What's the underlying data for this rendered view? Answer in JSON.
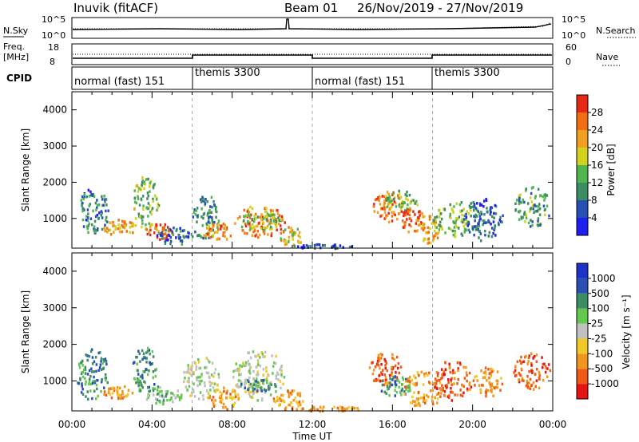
{
  "header": {
    "station": "Inuvik (fitACF)",
    "beam": "Beam 01",
    "date_range": "26/Nov/2019 - 27/Nov/2019"
  },
  "panels": {
    "nsky_label": "N.Sky",
    "nsearch_label": "N.Search",
    "freq_label": "Freq.",
    "freq_unit": "[MHz]",
    "nave_label": "Nave",
    "cpid_label": "CPID",
    "noise_ticks": [
      "10^5",
      "10^0"
    ],
    "freq_ticks": [
      "18",
      "8"
    ],
    "nave_ticks": [
      "60",
      "0"
    ],
    "cpid_segments": [
      {
        "label": "normal (fast) 151",
        "start": 0,
        "end": 6
      },
      {
        "label": "themis 3300",
        "start": 6,
        "end": 12
      },
      {
        "label": "normal (fast) 151",
        "start": 12,
        "end": 18
      },
      {
        "label": "themis 3300",
        "start": 18,
        "end": 24
      }
    ]
  },
  "colors": {
    "power": [
      "#1e1ef0",
      "#2850b4",
      "#3c8c64",
      "#50b450",
      "#d2d21e",
      "#f0a01e",
      "#f06e14",
      "#e62814"
    ],
    "velocity": [
      "#e61414",
      "#f05a14",
      "#f0961e",
      "#f0c828",
      "#c0c0c0",
      "#64c850",
      "#3c8c64",
      "#2850b4",
      "#1e32c8"
    ],
    "divider": "#aaaaaa"
  },
  "chart_data": [
    {
      "type": "heatmap",
      "name": "power",
      "ylabel": "Slant Range [km]",
      "yticks": [
        1000,
        2000,
        3000,
        4000
      ],
      "ylim": [
        180,
        4500
      ],
      "xlim": [
        0,
        24
      ],
      "colorbar_label": "Power [dB]",
      "colorbar_ticks": [
        4,
        8,
        12,
        16,
        20,
        24,
        28
      ],
      "colorbar_range": [
        0,
        32
      ],
      "blobs": [
        {
          "t0": 0.3,
          "t1": 1.8,
          "r0": 600,
          "r1": 1900,
          "v": 9
        },
        {
          "t0": 1.5,
          "t1": 3.2,
          "r0": 550,
          "r1": 1000,
          "v": 22
        },
        {
          "t0": 3.0,
          "t1": 4.3,
          "r0": 700,
          "r1": 2200,
          "v": 15
        },
        {
          "t0": 3.6,
          "t1": 5.0,
          "r0": 450,
          "r1": 900,
          "v": 27
        },
        {
          "t0": 4.2,
          "t1": 6.0,
          "r0": 300,
          "r1": 800,
          "v": 8
        },
        {
          "t0": 6.0,
          "t1": 7.3,
          "r0": 350,
          "r1": 1700,
          "v": 10
        },
        {
          "t0": 6.5,
          "t1": 8.0,
          "r0": 400,
          "r1": 900,
          "v": 24
        },
        {
          "t0": 8.0,
          "t1": 10.6,
          "r0": 500,
          "r1": 1400,
          "v": 25
        },
        {
          "t0": 8.2,
          "t1": 10.5,
          "r0": 700,
          "r1": 1200,
          "v": 14
        },
        {
          "t0": 10.3,
          "t1": 11.5,
          "r0": 250,
          "r1": 800,
          "v": 20
        },
        {
          "t0": 11.0,
          "t1": 14.0,
          "r0": 200,
          "r1": 320,
          "v": 5
        },
        {
          "t0": 15.0,
          "t1": 16.5,
          "r0": 900,
          "r1": 1800,
          "v": 25
        },
        {
          "t0": 15.5,
          "t1": 17.3,
          "r0": 1200,
          "r1": 1800,
          "v": 14
        },
        {
          "t0": 16.3,
          "t1": 17.6,
          "r0": 650,
          "r1": 1300,
          "v": 26
        },
        {
          "t0": 17.3,
          "t1": 18.3,
          "r0": 300,
          "r1": 1200,
          "v": 22
        },
        {
          "t0": 18.0,
          "t1": 20.5,
          "r0": 500,
          "r1": 1500,
          "v": 14
        },
        {
          "t0": 19.5,
          "t1": 21.5,
          "r0": 400,
          "r1": 1600,
          "v": 6
        },
        {
          "t0": 22.0,
          "t1": 23.9,
          "r0": 800,
          "r1": 1900,
          "v": 12
        }
      ]
    },
    {
      "type": "heatmap",
      "name": "velocity",
      "xlabel": "Time UT",
      "ylabel": "Slant Range [km]",
      "yticks": [
        1000,
        2000,
        3000,
        4000
      ],
      "ylim": [
        180,
        4500
      ],
      "xlim": [
        0,
        24
      ],
      "xticks": [
        "00:00",
        "04:00",
        "08:00",
        "12:00",
        "16:00",
        "20:00",
        "00:00"
      ],
      "colorbar_label": "Velocity [m s⁻¹]",
      "colorbar_ticks": [
        "1000",
        "500",
        "100",
        "25",
        "-25",
        "-100",
        "-500",
        "-1000"
      ],
      "blobs": [
        {
          "t0": 0.2,
          "t1": 1.8,
          "r0": 500,
          "r1": 1900,
          "v": 6
        },
        {
          "t0": 1.5,
          "t1": 3.0,
          "r0": 550,
          "r1": 900,
          "v": 2
        },
        {
          "t0": 3.0,
          "t1": 4.2,
          "r0": 700,
          "r1": 2000,
          "v": 6
        },
        {
          "t0": 3.5,
          "t1": 5.5,
          "r0": 400,
          "r1": 900,
          "v": 5
        },
        {
          "t0": 5.5,
          "t1": 7.3,
          "r0": 500,
          "r1": 1700,
          "v": 4
        },
        {
          "t0": 6.8,
          "t1": 8.3,
          "r0": 250,
          "r1": 900,
          "v": 2
        },
        {
          "t0": 8.0,
          "t1": 10.6,
          "r0": 500,
          "r1": 1900,
          "v": 4
        },
        {
          "t0": 8.4,
          "t1": 10.2,
          "r0": 750,
          "r1": 1100,
          "v": 6
        },
        {
          "t0": 10.0,
          "t1": 11.5,
          "r0": 250,
          "r1": 800,
          "v": 2
        },
        {
          "t0": 11.0,
          "t1": 14.5,
          "r0": 200,
          "r1": 330,
          "v": 2
        },
        {
          "t0": 14.8,
          "t1": 16.5,
          "r0": 900,
          "r1": 1800,
          "v": 1
        },
        {
          "t0": 15.3,
          "t1": 17.0,
          "r0": 600,
          "r1": 1200,
          "v": 6
        },
        {
          "t0": 16.5,
          "t1": 18.5,
          "r0": 300,
          "r1": 1300,
          "v": 2
        },
        {
          "t0": 18.0,
          "t1": 20.0,
          "r0": 500,
          "r1": 1600,
          "v": 1
        },
        {
          "t0": 20.0,
          "t1": 21.5,
          "r0": 600,
          "r1": 1400,
          "v": 2
        },
        {
          "t0": 22.0,
          "t1": 23.9,
          "r0": 800,
          "r1": 1800,
          "v": 1
        }
      ]
    }
  ]
}
